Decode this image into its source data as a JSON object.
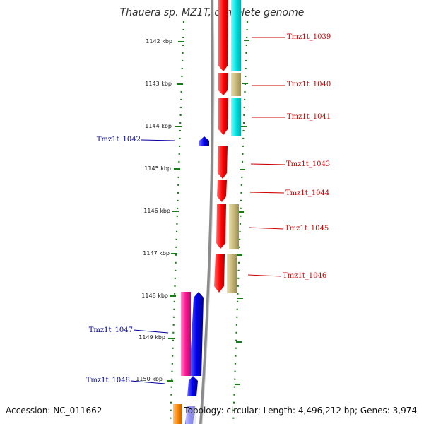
{
  "title": "Thauera sp. MZ1T, complete genome",
  "footer": {
    "accession": "Accession: NC_011662",
    "topology": "Topology: circular; Length: 4,496,212 bp; Genes: 3,974"
  },
  "scale_unit": "kbp",
  "scale_labels": [
    "1142 kbp",
    "1143 kbp",
    "1144 kbp",
    "1145 kbp",
    "1146 kbp",
    "1147 kbp",
    "1148 kbp",
    "1149 kbp",
    "1150 kbp"
  ],
  "gene_labels": {
    "tmz1t_1039": "Tmz1t_1039",
    "tmz1t_1040": "Tmz1t_1040",
    "tmz1t_1041": "Tmz1t_1041",
    "tmz1t_1042": "Tmz1t_1042",
    "tmz1t_1043": "Tmz1t_1043",
    "tmz1t_1044": "Tmz1t_1044",
    "tmz1t_1045": "Tmz1t_1045",
    "tmz1t_1046": "Tmz1t_1046",
    "tmz1t_1047": "Tmz1t_1047",
    "tmz1t_1048": "Tmz1t_1048"
  },
  "colors": {
    "forward_strand": "#ff0000",
    "reverse_strand": "#0000ee",
    "cog_cyan": "#00e5e5",
    "cog_khaki": "#c8b97a",
    "cog_magenta": "#ff1493",
    "cog_orange": "#ff8800",
    "ruler": "#1a7a1a",
    "backbone": "#888888",
    "label_red": "#cc0000",
    "label_blue": "#000099"
  }
}
